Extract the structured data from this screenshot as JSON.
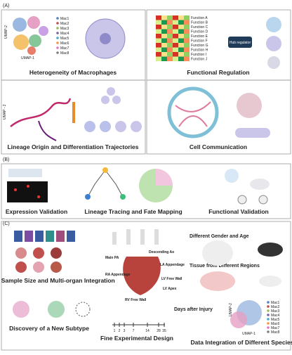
{
  "panel_a": {
    "label": "(A)",
    "heterogeneity": {
      "title": "Heterogeneity of Macrophages",
      "x_label": "UMAP-1",
      "y_label": "UMAP-2",
      "legend": [
        "Mac1",
        "Mac2",
        "Mac3",
        "Mac4",
        "Mac5",
        "Mac6",
        "Mac7",
        "Mac8"
      ]
    },
    "regulation": {
      "title": "Functional Regulation",
      "hub": "Hub regulator",
      "functions": [
        "Function A",
        "Function B",
        "Function C",
        "Function D",
        "Function E",
        "Function F",
        "Function G",
        "Function H",
        "Function I",
        "Function J"
      ]
    },
    "lineage": {
      "title": "Lineage Origin and Differentiation Trajectories",
      "y_label": "UMAP - 2"
    },
    "communication": {
      "title": "Cell Communication"
    }
  },
  "panel_b": {
    "label": "(B)",
    "sections": [
      "Expression Validation",
      "Lineage Tracing and Fate Mapping",
      "Functional Validation"
    ]
  },
  "panel_c": {
    "label": "(C)",
    "large_sample": "Large Sample Size and Multi-organ Integration",
    "new_subtype": "Discovery of a New Subtype",
    "design": "Fine Experimental Design",
    "species": "Data Integration of Different Species",
    "gender_age": "Different Gender and Age",
    "regions": "Tissue from Different Regions",
    "days": "Days after Injury",
    "heart_labels": [
      "Main PA",
      "Descending Ao",
      "LA Appendage",
      "RA Appendage",
      "LV Free Wall",
      "LV Apex",
      "RV Free Wall"
    ],
    "timeline": [
      "1",
      "2",
      "3",
      "7",
      "14",
      "28",
      "35"
    ],
    "x_label": "UMAP-1",
    "y_label": "UMAP-2",
    "legend": [
      "Mac1",
      "Mac2",
      "Mac3",
      "Mac4",
      "Mac5",
      "Mac6",
      "Mac7",
      "Mac8"
    ]
  }
}
